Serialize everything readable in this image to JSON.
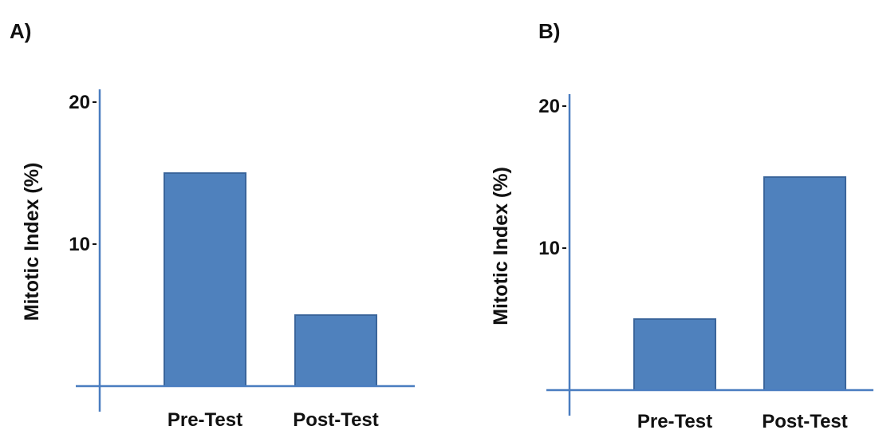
{
  "colors": {
    "axis": "#4a7dc0",
    "bar_fill": "#4f81bd",
    "bar_stroke": "#3a659b",
    "text": "#111111"
  },
  "chart_data": [
    {
      "type": "bar",
      "panel_label": "A)",
      "categories": [
        "Pre-Test",
        "Post-Test"
      ],
      "values": [
        15,
        5
      ],
      "title": "",
      "xlabel": "",
      "ylabel": "Mitotic Index (%)",
      "ylim": [
        0,
        20
      ],
      "yticks": [
        10,
        20
      ],
      "grid": false
    },
    {
      "type": "bar",
      "panel_label": "B)",
      "categories": [
        "Pre-Test",
        "Post-Test"
      ],
      "values": [
        5,
        15
      ],
      "title": "",
      "xlabel": "",
      "ylabel": "Mitotic Index (%)",
      "ylim": [
        0,
        20
      ],
      "yticks": [
        10,
        20
      ],
      "grid": false
    }
  ]
}
